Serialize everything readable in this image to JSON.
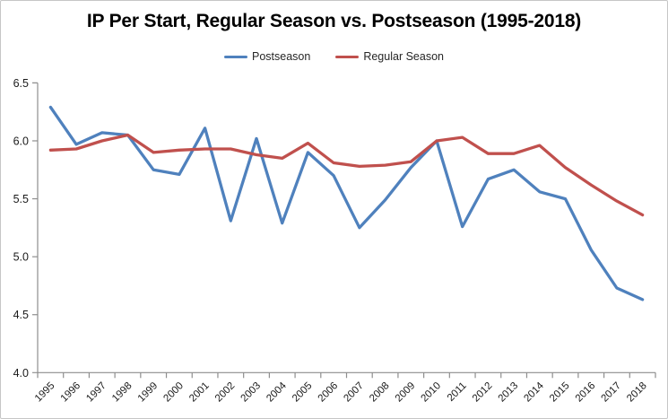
{
  "chart_data": {
    "type": "line",
    "title": "IP Per Start, Regular Season vs. Postseason (1995-2018)",
    "categories": [
      "1995",
      "1996",
      "1997",
      "1998",
      "1999",
      "2000",
      "2001",
      "2002",
      "2003",
      "2004",
      "2005",
      "2006",
      "2007",
      "2008",
      "2009",
      "2010",
      "2011",
      "2012",
      "2013",
      "2014",
      "2015",
      "2016",
      "2017",
      "2018"
    ],
    "series": [
      {
        "name": "Postseason",
        "color": "#4F81BD",
        "values": [
          6.29,
          5.97,
          6.07,
          6.05,
          5.75,
          5.71,
          6.11,
          5.31,
          6.02,
          5.29,
          5.9,
          5.7,
          5.25,
          5.49,
          5.77,
          6.0,
          5.26,
          5.67,
          5.75,
          5.56,
          5.5,
          5.06,
          4.73,
          4.63
        ]
      },
      {
        "name": "Regular Season",
        "color": "#C0504D",
        "values": [
          5.92,
          5.93,
          6.0,
          6.05,
          5.9,
          5.92,
          5.93,
          5.93,
          5.88,
          5.85,
          5.98,
          5.81,
          5.78,
          5.79,
          5.82,
          6.0,
          6.03,
          5.89,
          5.89,
          5.96,
          5.77,
          5.62,
          5.48,
          5.36
        ]
      }
    ],
    "xlabel": "",
    "ylabel": "",
    "ylim": [
      4.0,
      6.5
    ],
    "y_ticks": [
      6.5,
      6.0,
      5.5,
      5.0,
      4.5,
      4.0
    ],
    "grid": false,
    "legend_position": "top",
    "axis_color": "#8e8e8e",
    "text_color": "#1a1a1a"
  }
}
